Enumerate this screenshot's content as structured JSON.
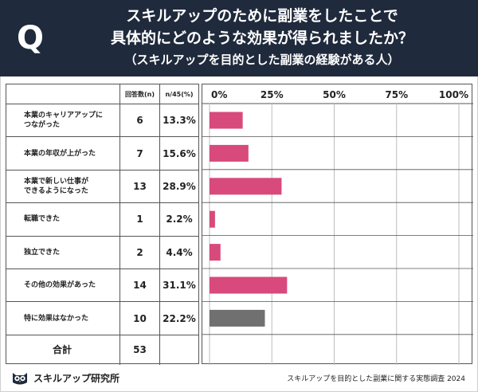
{
  "header": {
    "badge": "Q",
    "title_line1": "スキルアップのために副業をしたことで",
    "title_line2": "具体的にどのような効果が得られましたか？",
    "title_line3": "（スキルアップを目的とした副業の経験がある人）"
  },
  "table": {
    "col_n_header": "回答数(n)",
    "col_p_header": "n/45(%)",
    "total_label": "合計",
    "total_n": "53"
  },
  "colors": {
    "primary_bar": "#d84a7b",
    "last_bar": "#707070",
    "header_bg": "#1f2a3c"
  },
  "chart_data": {
    "type": "bar",
    "orientation": "horizontal",
    "categories": [
      "本業のキャリアアップに\nつながった",
      "本業の年収が上がった",
      "本業で新しい仕事が\nできるようになった",
      "転職できた",
      "独立できた",
      "その他の効果があった",
      "特に効果はなかった"
    ],
    "counts": [
      6,
      7,
      13,
      1,
      2,
      14,
      10
    ],
    "values": [
      13.3,
      15.6,
      28.9,
      2.2,
      4.4,
      31.1,
      22.2
    ],
    "value_labels": [
      "13.3%",
      "15.6%",
      "28.9%",
      "2.2%",
      "4.4%",
      "31.1%",
      "22.2%"
    ],
    "xlim": [
      0,
      100
    ],
    "ticks": [
      0,
      25,
      50,
      75,
      100
    ],
    "tick_labels": [
      "0%",
      "25%",
      "50%",
      "75%",
      "100%"
    ],
    "grid": true
  },
  "footer": {
    "brand": "スキルアップ研究所",
    "note": "スキルアップを目的とした副業に関する実態調査 2024"
  }
}
